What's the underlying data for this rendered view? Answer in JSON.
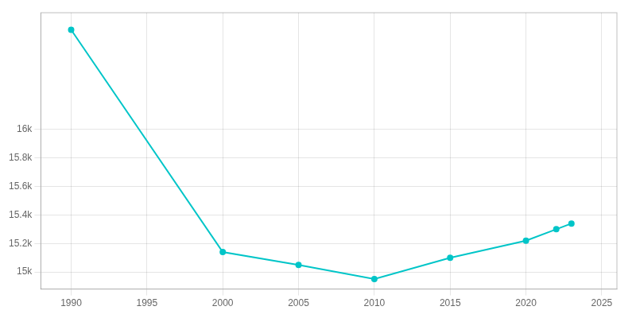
{
  "chart_data": {
    "type": "line",
    "x": [
      1990,
      2000,
      2005,
      2010,
      2015,
      2020,
      2022,
      2023
    ],
    "values": [
      16700,
      15140,
      15050,
      14950,
      15100,
      15220,
      15300,
      15340
    ],
    "color": "#00C5C8",
    "marker": "circle",
    "xlim": [
      1988,
      2026
    ],
    "xticks": [
      1990,
      1995,
      2000,
      2005,
      2010,
      2015,
      2020,
      2025
    ],
    "ylim": [
      14880,
      16820
    ],
    "yticks": [
      {
        "value": 15000,
        "label": "15k"
      },
      {
        "value": 15200,
        "label": "15.2k"
      },
      {
        "value": 15400,
        "label": "15.4k"
      },
      {
        "value": 15600,
        "label": "15.6k"
      },
      {
        "value": 15800,
        "label": "15.8k"
      },
      {
        "value": 16000,
        "label": "16k"
      }
    ],
    "grid": true
  }
}
